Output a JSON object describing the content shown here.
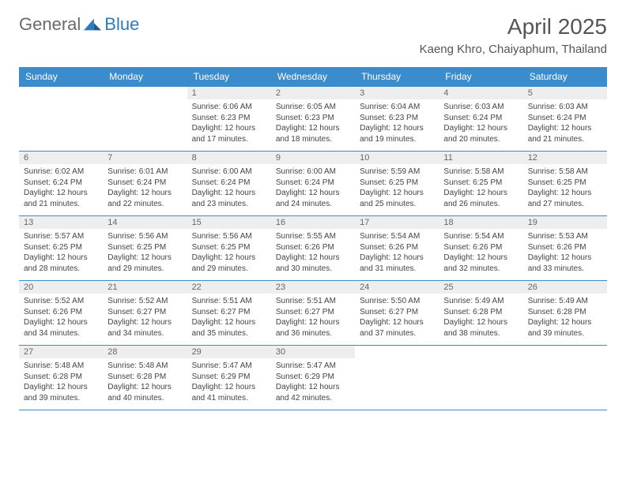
{
  "logo": {
    "text1": "General",
    "text2": "Blue"
  },
  "title": "April 2025",
  "location": "Kaeng Khro, Chaiyaphum, Thailand",
  "colors": {
    "header_bg": "#3a8ccc",
    "header_fg": "#ffffff",
    "daynum_bg": "#eeeeee",
    "border": "#3a8ccc"
  },
  "weekdays": [
    "Sunday",
    "Monday",
    "Tuesday",
    "Wednesday",
    "Thursday",
    "Friday",
    "Saturday"
  ],
  "weeks": [
    [
      {
        "num": "",
        "lines": []
      },
      {
        "num": "",
        "lines": []
      },
      {
        "num": "1",
        "lines": [
          "Sunrise: 6:06 AM",
          "Sunset: 6:23 PM",
          "Daylight: 12 hours and 17 minutes."
        ]
      },
      {
        "num": "2",
        "lines": [
          "Sunrise: 6:05 AM",
          "Sunset: 6:23 PM",
          "Daylight: 12 hours and 18 minutes."
        ]
      },
      {
        "num": "3",
        "lines": [
          "Sunrise: 6:04 AM",
          "Sunset: 6:23 PM",
          "Daylight: 12 hours and 19 minutes."
        ]
      },
      {
        "num": "4",
        "lines": [
          "Sunrise: 6:03 AM",
          "Sunset: 6:24 PM",
          "Daylight: 12 hours and 20 minutes."
        ]
      },
      {
        "num": "5",
        "lines": [
          "Sunrise: 6:03 AM",
          "Sunset: 6:24 PM",
          "Daylight: 12 hours and 21 minutes."
        ]
      }
    ],
    [
      {
        "num": "6",
        "lines": [
          "Sunrise: 6:02 AM",
          "Sunset: 6:24 PM",
          "Daylight: 12 hours and 21 minutes."
        ]
      },
      {
        "num": "7",
        "lines": [
          "Sunrise: 6:01 AM",
          "Sunset: 6:24 PM",
          "Daylight: 12 hours and 22 minutes."
        ]
      },
      {
        "num": "8",
        "lines": [
          "Sunrise: 6:00 AM",
          "Sunset: 6:24 PM",
          "Daylight: 12 hours and 23 minutes."
        ]
      },
      {
        "num": "9",
        "lines": [
          "Sunrise: 6:00 AM",
          "Sunset: 6:24 PM",
          "Daylight: 12 hours and 24 minutes."
        ]
      },
      {
        "num": "10",
        "lines": [
          "Sunrise: 5:59 AM",
          "Sunset: 6:25 PM",
          "Daylight: 12 hours and 25 minutes."
        ]
      },
      {
        "num": "11",
        "lines": [
          "Sunrise: 5:58 AM",
          "Sunset: 6:25 PM",
          "Daylight: 12 hours and 26 minutes."
        ]
      },
      {
        "num": "12",
        "lines": [
          "Sunrise: 5:58 AM",
          "Sunset: 6:25 PM",
          "Daylight: 12 hours and 27 minutes."
        ]
      }
    ],
    [
      {
        "num": "13",
        "lines": [
          "Sunrise: 5:57 AM",
          "Sunset: 6:25 PM",
          "Daylight: 12 hours and 28 minutes."
        ]
      },
      {
        "num": "14",
        "lines": [
          "Sunrise: 5:56 AM",
          "Sunset: 6:25 PM",
          "Daylight: 12 hours and 29 minutes."
        ]
      },
      {
        "num": "15",
        "lines": [
          "Sunrise: 5:56 AM",
          "Sunset: 6:25 PM",
          "Daylight: 12 hours and 29 minutes."
        ]
      },
      {
        "num": "16",
        "lines": [
          "Sunrise: 5:55 AM",
          "Sunset: 6:26 PM",
          "Daylight: 12 hours and 30 minutes."
        ]
      },
      {
        "num": "17",
        "lines": [
          "Sunrise: 5:54 AM",
          "Sunset: 6:26 PM",
          "Daylight: 12 hours and 31 minutes."
        ]
      },
      {
        "num": "18",
        "lines": [
          "Sunrise: 5:54 AM",
          "Sunset: 6:26 PM",
          "Daylight: 12 hours and 32 minutes."
        ]
      },
      {
        "num": "19",
        "lines": [
          "Sunrise: 5:53 AM",
          "Sunset: 6:26 PM",
          "Daylight: 12 hours and 33 minutes."
        ]
      }
    ],
    [
      {
        "num": "20",
        "lines": [
          "Sunrise: 5:52 AM",
          "Sunset: 6:26 PM",
          "Daylight: 12 hours and 34 minutes."
        ]
      },
      {
        "num": "21",
        "lines": [
          "Sunrise: 5:52 AM",
          "Sunset: 6:27 PM",
          "Daylight: 12 hours and 34 minutes."
        ]
      },
      {
        "num": "22",
        "lines": [
          "Sunrise: 5:51 AM",
          "Sunset: 6:27 PM",
          "Daylight: 12 hours and 35 minutes."
        ]
      },
      {
        "num": "23",
        "lines": [
          "Sunrise: 5:51 AM",
          "Sunset: 6:27 PM",
          "Daylight: 12 hours and 36 minutes."
        ]
      },
      {
        "num": "24",
        "lines": [
          "Sunrise: 5:50 AM",
          "Sunset: 6:27 PM",
          "Daylight: 12 hours and 37 minutes."
        ]
      },
      {
        "num": "25",
        "lines": [
          "Sunrise: 5:49 AM",
          "Sunset: 6:28 PM",
          "Daylight: 12 hours and 38 minutes."
        ]
      },
      {
        "num": "26",
        "lines": [
          "Sunrise: 5:49 AM",
          "Sunset: 6:28 PM",
          "Daylight: 12 hours and 39 minutes."
        ]
      }
    ],
    [
      {
        "num": "27",
        "lines": [
          "Sunrise: 5:48 AM",
          "Sunset: 6:28 PM",
          "Daylight: 12 hours and 39 minutes."
        ]
      },
      {
        "num": "28",
        "lines": [
          "Sunrise: 5:48 AM",
          "Sunset: 6:28 PM",
          "Daylight: 12 hours and 40 minutes."
        ]
      },
      {
        "num": "29",
        "lines": [
          "Sunrise: 5:47 AM",
          "Sunset: 6:29 PM",
          "Daylight: 12 hours and 41 minutes."
        ]
      },
      {
        "num": "30",
        "lines": [
          "Sunrise: 5:47 AM",
          "Sunset: 6:29 PM",
          "Daylight: 12 hours and 42 minutes."
        ]
      },
      {
        "num": "",
        "lines": []
      },
      {
        "num": "",
        "lines": []
      },
      {
        "num": "",
        "lines": []
      }
    ]
  ]
}
